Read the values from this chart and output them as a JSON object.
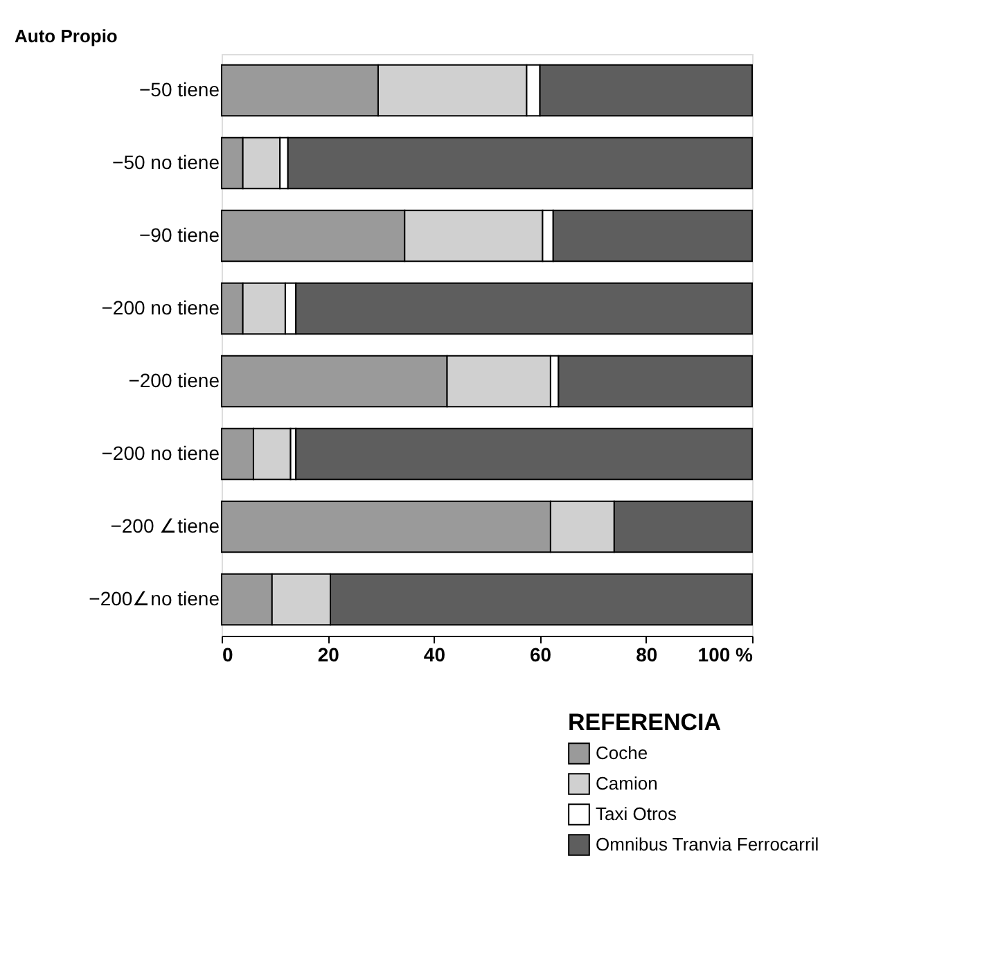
{
  "chart_data": {
    "type": "bar",
    "orientation": "horizontal",
    "stacked": true,
    "ylabel": "Auto Propio",
    "legend_title": "REFERENCIA",
    "legend": "bottom right",
    "grid": false,
    "categories": [
      "−50 tiene",
      "−50 no tiene",
      "−90 tiene",
      "−200 no tiene",
      "−200 tiene",
      "−200 no tiene",
      "−200 ∠tiene",
      "−200∠no tiene"
    ],
    "series": [
      {
        "name": "Coche",
        "color": "#9a9a9a",
        "values": [
          29.5,
          4,
          34.5,
          4,
          42.5,
          6,
          62,
          9.5
        ]
      },
      {
        "name": "Camion",
        "color": "#d0d0d0",
        "values": [
          28,
          7,
          26,
          8,
          19.5,
          7,
          12,
          11
        ]
      },
      {
        "name": "Taxi Otros",
        "color": "#ffffff",
        "values": [
          2.5,
          1.5,
          2,
          2,
          1.5,
          1,
          0,
          0
        ]
      },
      {
        "name": "Omnibus Tranvia Ferrocarril",
        "color": "#5e5e5e",
        "values": [
          40,
          87.5,
          37.5,
          86,
          36.5,
          86,
          26,
          79.5
        ]
      }
    ],
    "xlim": [
      0,
      100
    ],
    "xticks": [
      0,
      20,
      40,
      60,
      80,
      {
        "value": 100,
        "label": "100 %"
      }
    ]
  }
}
